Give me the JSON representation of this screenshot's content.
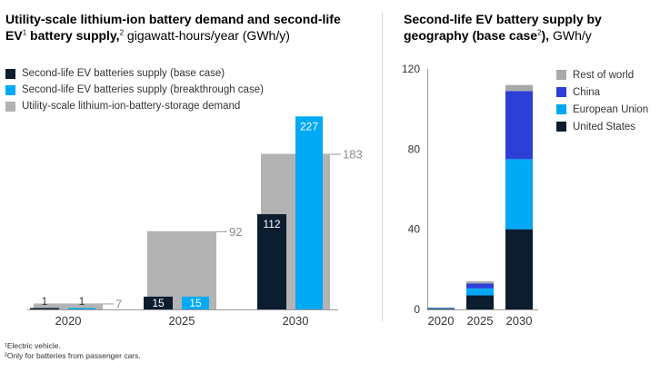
{
  "left_title": {
    "bold_a": "Utility-scale lithium-ion battery demand and second-life",
    "bold_b": "EV",
    "sup1": "1",
    "bold_c": " battery supply,",
    "sup2": "2",
    "unit": " gigawatt-hours/year (GWh/y)"
  },
  "right_title": {
    "bold_a": "Second-life EV battery supply by",
    "bold_b": "geography (base case",
    "sup2": "2",
    "bold_c": "),",
    "unit": " GWh/y"
  },
  "footnotes": [
    "¹Electric vehicle.",
    "²Only for batteries from passenger cars."
  ],
  "colors": {
    "navy": "#0b1d2e",
    "cyan": "#00a9f4",
    "gray": "#b3b3b3",
    "blue": "#2c3fd6",
    "light_gray": "#a9a9a9",
    "value_gray": "#8c8c8c"
  },
  "chart_data": [
    {
      "type": "bar",
      "categories": [
        "2020",
        "2025",
        "2030"
      ],
      "series": [
        {
          "name": "Second-life EV batteries supply (base case)",
          "color": "#0b1d2e",
          "values": [
            1,
            15,
            112
          ]
        },
        {
          "name": "Second-life EV batteries supply (breakthrough case)",
          "color": "#00a9f4",
          "values": [
            1,
            15,
            227
          ]
        },
        {
          "name": "Utility-scale lithium-ion-battery-storage demand",
          "color": "#b3b3b3",
          "values": [
            7,
            92,
            183
          ]
        }
      ],
      "data_labels": {
        "base": [
          "1",
          "15",
          "112"
        ],
        "breakthrough": [
          "1",
          "15",
          "227"
        ],
        "demand": [
          "7",
          "92",
          "183"
        ]
      },
      "ylim": [
        0,
        227
      ],
      "legend_position": "top-left",
      "grid": false
    },
    {
      "type": "bar",
      "stacked": true,
      "categories": [
        "2020",
        "2025",
        "2030"
      ],
      "yticks": [
        "0",
        "40",
        "80",
        "120"
      ],
      "ylim": [
        0,
        120
      ],
      "series": [
        {
          "name": "United States",
          "color": "#0b1d2e",
          "values": [
            0.3,
            7,
            40
          ]
        },
        {
          "name": "European Union",
          "color": "#00a9f4",
          "values": [
            0.3,
            3.5,
            35
          ]
        },
        {
          "name": "China",
          "color": "#2c3fd6",
          "values": [
            0.2,
            2.5,
            34
          ]
        },
        {
          "name": "Rest of world",
          "color": "#a9a9a9",
          "values": [
            0.2,
            1,
            3
          ]
        }
      ],
      "legend_order": [
        "Rest of world",
        "China",
        "European Union",
        "United States"
      ],
      "legend_position": "right",
      "grid": false
    }
  ]
}
